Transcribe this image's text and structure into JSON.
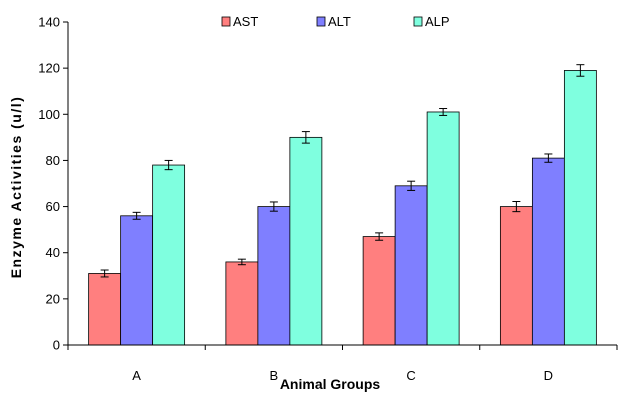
{
  "chart_data": {
    "type": "bar",
    "title": "",
    "xlabel": "Animal Groups",
    "ylabel": "Enzyme Activities (u/l)",
    "ylim": [
      0,
      140
    ],
    "yticks": [
      0,
      20,
      40,
      60,
      80,
      100,
      120,
      140
    ],
    "categories": [
      "A",
      "B",
      "C",
      "D"
    ],
    "legend_position": "top-center",
    "grid": false,
    "series": [
      {
        "name": "AST",
        "color": "#ff7f7f",
        "values": [
          31,
          36,
          47,
          60
        ],
        "errors": [
          1.5,
          1.2,
          1.6,
          2.2
        ]
      },
      {
        "name": "ALT",
        "color": "#7f7fff",
        "values": [
          56,
          60,
          69,
          81
        ],
        "errors": [
          1.5,
          2.0,
          2.0,
          1.8
        ]
      },
      {
        "name": "ALP",
        "color": "#7fffdf",
        "values": [
          78,
          90,
          101,
          119
        ],
        "errors": [
          2.0,
          2.5,
          1.5,
          2.5
        ]
      }
    ]
  }
}
